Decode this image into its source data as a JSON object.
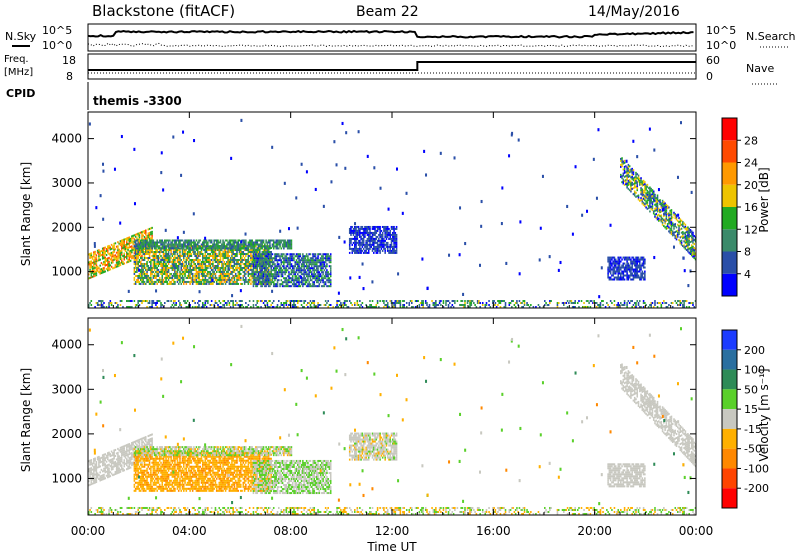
{
  "header": {
    "radar": "Blackstone (fitACF)",
    "beam": "Beam 22",
    "date": "14/May/2016"
  },
  "noise_panel": {
    "left_label": "N.Sky",
    "right_label": "N.Search",
    "ticks_left": [
      "10^5",
      "10^0"
    ],
    "ticks_right": [
      "10^5",
      "10^0"
    ]
  },
  "freq_panel": {
    "left_label_1": "Freq.",
    "left_label_2": "[MHz]",
    "right_label": "Nave",
    "ticks_left": [
      "18",
      "8"
    ],
    "ticks_right": [
      "60",
      "0"
    ]
  },
  "cpid": {
    "label": "CPID",
    "value": "themis -3300"
  },
  "x_axis": {
    "label": "Time UT",
    "ticks": [
      "00:00",
      "04:00",
      "08:00",
      "12:00",
      "16:00",
      "20:00",
      "00:00"
    ]
  },
  "power_panel": {
    "ylabel": "Slant Range [km]",
    "yticks": [
      "1000",
      "2000",
      "3000",
      "4000"
    ],
    "colorbar_label": "Power [dB]",
    "colorbar_ticks": [
      "4",
      "8",
      "12",
      "16",
      "20",
      "24",
      "28"
    ],
    "colors": [
      "#0000ff",
      "#2a4fa8",
      "#3a8a6a",
      "#22aa22",
      "#eec400",
      "#ff9900",
      "#ff4a00",
      "#ff0000"
    ]
  },
  "velocity_panel": {
    "ylabel": "Slant Range [km]",
    "yticks": [
      "1000",
      "2000",
      "3000",
      "4000"
    ],
    "colorbar_label": "Velocity [m s⁻¹]",
    "colorbar_ticks": [
      "200",
      "100",
      "50",
      "15",
      "-15",
      "-50",
      "-100",
      "-200"
    ],
    "colors": [
      "#1c3cff",
      "#2a6fa0",
      "#2e8b57",
      "#5ad02a",
      "#c8c8c0",
      "#ffb000",
      "#ff8800",
      "#ff4400",
      "#ff0000"
    ]
  },
  "chart_data": {
    "type": "heatmap",
    "x_range_hours": [
      0,
      24
    ],
    "y_range_km": [
      180,
      4600
    ],
    "echo_regions": [
      {
        "t0": 0.0,
        "t1": 2.5,
        "r0": 850,
        "r1": 1950,
        "kind": "slant-band",
        "power": [
          14,
          28
        ],
        "velocity": [
          -15,
          15
        ]
      },
      {
        "t0": 1.8,
        "t1": 7.2,
        "r0": 700,
        "r1": 1600,
        "kind": "band",
        "power": [
          8,
          24
        ],
        "velocity": [
          -60,
          -15
        ]
      },
      {
        "t0": 6.5,
        "t1": 9.6,
        "r0": 650,
        "r1": 1400,
        "kind": "band",
        "power": [
          4,
          16
        ],
        "velocity": [
          -15,
          40
        ]
      },
      {
        "t0": 1.8,
        "t1": 8.0,
        "r0": 1500,
        "r1": 1700,
        "kind": "band",
        "power": [
          8,
          16
        ],
        "velocity": [
          -30,
          40
        ]
      },
      {
        "t0": 10.3,
        "t1": 12.2,
        "r0": 1400,
        "r1": 2000,
        "kind": "band",
        "power": [
          4,
          10
        ],
        "velocity": [
          -20,
          20
        ]
      },
      {
        "t0": 21.0,
        "t1": 24.0,
        "r0": 1300,
        "r1": 3500,
        "kind": "slant-band",
        "power": [
          4,
          22
        ],
        "velocity": [
          -15,
          15
        ]
      },
      {
        "t0": 20.5,
        "t1": 22.0,
        "r0": 800,
        "r1": 1300,
        "kind": "band",
        "power": [
          4,
          10
        ],
        "velocity": [
          -15,
          15
        ]
      },
      {
        "t0": 0.0,
        "t1": 24.0,
        "r0": 180,
        "r1": 350,
        "kind": "ground",
        "power": [
          4,
          20
        ],
        "velocity": [
          -50,
          50
        ]
      }
    ],
    "nave_step": {
      "time": 13.0,
      "before": 35,
      "after": 55
    },
    "series": [
      {
        "name": "N.Sky",
        "values": [
          4,
          4,
          4,
          4,
          4,
          4,
          4,
          4
        ]
      },
      {
        "name": "N.Search",
        "values": [
          1,
          1,
          1,
          1,
          1,
          1,
          1,
          1
        ]
      }
    ]
  }
}
